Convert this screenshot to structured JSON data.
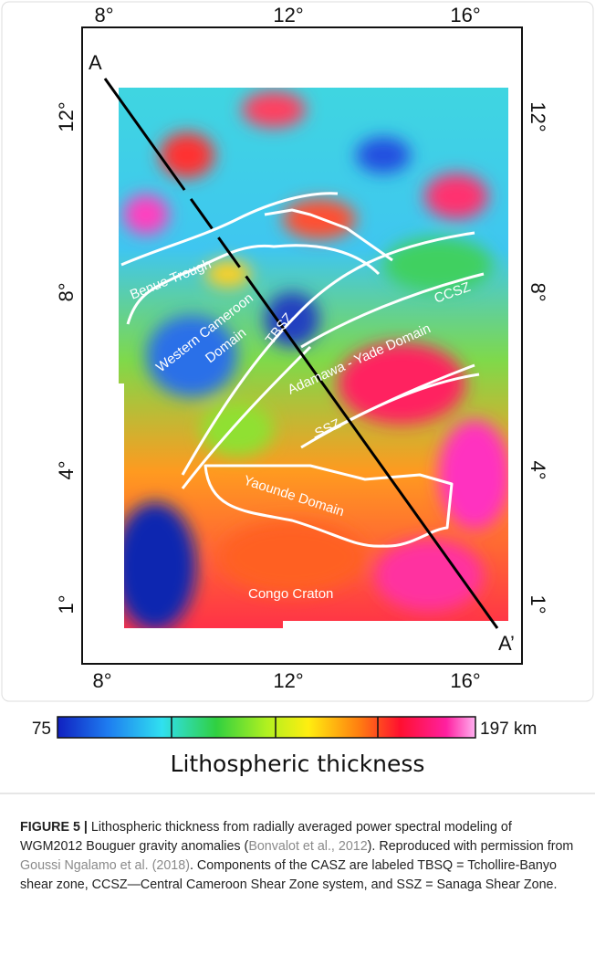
{
  "figure": {
    "top_ticks": [
      "8°",
      "12°",
      "16°"
    ],
    "bottom_ticks": [
      "8°",
      "12°",
      "16°"
    ],
    "left_ticks": [
      "12°",
      "8°",
      "4°",
      "1°"
    ],
    "right_ticks": [
      "12°",
      "8°",
      "4°",
      "1°"
    ],
    "profile_start": "A",
    "profile_end": "A’",
    "labels": {
      "benue": "Benue Trough",
      "western1": "Western Cameroon",
      "western2": "Domain",
      "tbsz": "TBSZ",
      "ccsz": "CCSZ",
      "adamawa": "Adamawa - Yade Domain",
      "ssz": "SSZ",
      "yaounde": "Yaounde Domain",
      "congo": "Congo Craton"
    },
    "colorbar": {
      "min_label": "75",
      "max_label": "197 km",
      "title": "Lithospheric thickness"
    }
  },
  "caption": {
    "label": "FIGURE 5 |",
    "text1": " Lithospheric thickness from radially averaged power spectral modeling of WGM2012 Bouguer gravity anomalies (",
    "link1": "Bonvalot et al., 2012",
    "text2": "). Reproduced with permission from ",
    "link2": "Goussi Ngalamo et al. (2018)",
    "text3": ". Components of the CASZ are labeled TBSQ = Tchollire-Banyo shear zone, CCSZ—Central Cameroon Shear Zone system, and SSZ = Sanaga Shear Zone."
  }
}
